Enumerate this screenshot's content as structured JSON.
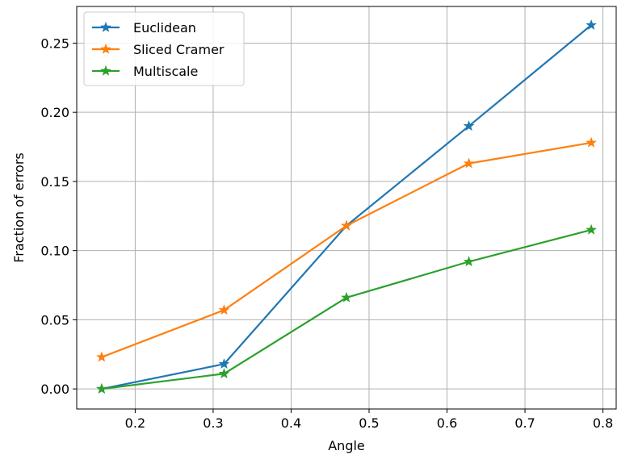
{
  "chart_data": {
    "type": "line",
    "title": "",
    "xlabel": "Angle",
    "ylabel": "Fraction of errors",
    "xlim": [
      0.125,
      0.817
    ],
    "ylim": [
      -0.0145,
      0.2765
    ],
    "xticks": [
      0.2,
      0.3,
      0.4,
      0.5,
      0.6,
      0.7,
      0.8
    ],
    "xtick_labels": [
      "0.2",
      "0.3",
      "0.4",
      "0.5",
      "0.6",
      "0.7",
      "0.8"
    ],
    "yticks": [
      0.0,
      0.05,
      0.1,
      0.15,
      0.2,
      0.25
    ],
    "ytick_labels": [
      "0.00",
      "0.05",
      "0.10",
      "0.15",
      "0.20",
      "0.25"
    ],
    "grid": true,
    "legend_position": "top-left",
    "marker": "star",
    "x": [
      0.157,
      0.314,
      0.471,
      0.628,
      0.785
    ],
    "series": [
      {
        "name": "Euclidean",
        "color": "#1f77b4",
        "values": [
          0.0,
          0.018,
          0.118,
          0.19,
          0.263
        ]
      },
      {
        "name": "Sliced Cramer",
        "color": "#ff7f0e",
        "values": [
          0.023,
          0.057,
          0.118,
          0.163,
          0.178
        ]
      },
      {
        "name": "Multiscale",
        "color": "#2ca02c",
        "values": [
          0.0,
          0.011,
          0.066,
          0.092,
          0.115
        ]
      }
    ]
  }
}
